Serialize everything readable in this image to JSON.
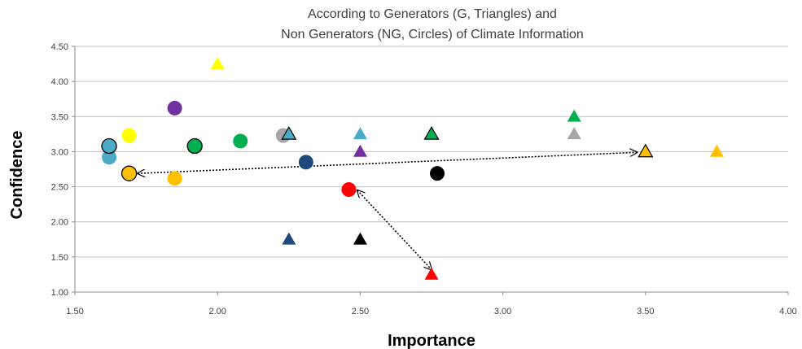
{
  "chart_data": {
    "type": "scatter",
    "title": [
      "According to Generators (G, Triangles) and",
      "Non Generators (NG, Circles) of Climate Information"
    ],
    "xlabel": "Importance",
    "ylabel": "Confidence",
    "xlim": [
      1.5,
      4.0
    ],
    "ylim": [
      1.0,
      4.5
    ],
    "xticks": [
      "1.50",
      "2.00",
      "2.50",
      "3.00",
      "3.50",
      "4.00"
    ],
    "yticks": [
      "1.00",
      "1.50",
      "2.00",
      "2.50",
      "3.00",
      "3.50",
      "4.00",
      "4.50"
    ],
    "grid": true,
    "legend": "none",
    "series": [
      {
        "marker": "circle",
        "points": [
          {
            "x": 1.62,
            "y": 2.92,
            "color": "#4bacc6",
            "outline": false
          },
          {
            "x": 1.62,
            "y": 3.08,
            "color": "#4bacc6",
            "outline": true
          },
          {
            "x": 1.69,
            "y": 3.23,
            "color": "#ffff00",
            "outline": false
          },
          {
            "x": 1.69,
            "y": 2.69,
            "color": "#ffc000",
            "outline": true
          },
          {
            "x": 1.85,
            "y": 3.62,
            "color": "#7030a0",
            "outline": false
          },
          {
            "x": 1.85,
            "y": 2.62,
            "color": "#ffc000",
            "outline": false
          },
          {
            "x": 1.92,
            "y": 3.08,
            "color": "#00b050",
            "outline": true
          },
          {
            "x": 2.08,
            "y": 3.15,
            "color": "#00b050",
            "outline": false
          },
          {
            "x": 2.23,
            "y": 3.23,
            "color": "#a6a6a6",
            "outline": false
          },
          {
            "x": 2.31,
            "y": 2.85,
            "color": "#1f497d",
            "outline": false
          },
          {
            "x": 2.46,
            "y": 2.46,
            "color": "#ff0000",
            "outline": false
          },
          {
            "x": 2.77,
            "y": 2.69,
            "color": "#000000",
            "outline": false
          }
        ]
      },
      {
        "marker": "triangle",
        "points": [
          {
            "x": 2.0,
            "y": 4.25,
            "color": "#ffff00",
            "outline": false
          },
          {
            "x": 2.25,
            "y": 3.25,
            "color": "#4bacc6",
            "outline": true
          },
          {
            "x": 2.5,
            "y": 3.25,
            "color": "#4bacc6",
            "outline": false
          },
          {
            "x": 2.5,
            "y": 3.0,
            "color": "#7030a0",
            "outline": false
          },
          {
            "x": 2.75,
            "y": 3.25,
            "color": "#00b050",
            "outline": true
          },
          {
            "x": 3.25,
            "y": 3.5,
            "color": "#00b050",
            "outline": false
          },
          {
            "x": 3.25,
            "y": 3.25,
            "color": "#a6a6a6",
            "outline": false
          },
          {
            "x": 3.5,
            "y": 3.0,
            "color": "#ffc000",
            "outline": true
          },
          {
            "x": 3.75,
            "y": 3.0,
            "color": "#ffc000",
            "outline": false
          },
          {
            "x": 2.25,
            "y": 1.75,
            "color": "#1f497d",
            "outline": false
          },
          {
            "x": 2.5,
            "y": 1.75,
            "color": "#000000",
            "outline": false
          },
          {
            "x": 2.75,
            "y": 1.25,
            "color": "#ff0000",
            "outline": false
          }
        ]
      }
    ],
    "annotations": [
      {
        "type": "double-arrow",
        "style": "dotted",
        "from": [
          1.72,
          2.69
        ],
        "to": [
          3.47,
          2.99
        ]
      },
      {
        "type": "double-arrow",
        "style": "dotted",
        "from": [
          2.49,
          2.45
        ],
        "to": [
          2.75,
          1.32
        ]
      }
    ]
  }
}
